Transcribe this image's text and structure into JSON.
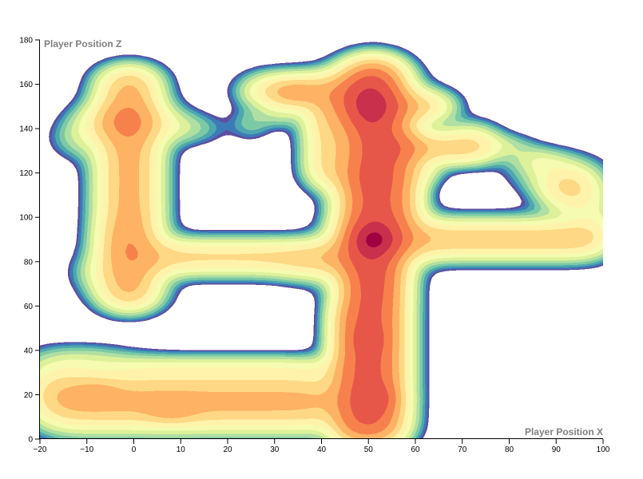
{
  "chart_data": {
    "type": "heatmap",
    "subtype": "density-contour",
    "xlabel": "Player Position X",
    "ylabel": "Player Position Z",
    "xlim": [
      -20,
      100
    ],
    "ylim": [
      0,
      180
    ],
    "xticks": [
      -20,
      -10,
      0,
      10,
      20,
      30,
      40,
      50,
      60,
      70,
      80,
      90,
      100
    ],
    "yticks": [
      0,
      20,
      40,
      60,
      80,
      100,
      120,
      140,
      160,
      180
    ],
    "xtick_labels": [
      "−20",
      "−10",
      "0",
      "10",
      "20",
      "30",
      "40",
      "50",
      "60",
      "70",
      "80",
      "90",
      "100"
    ],
    "ytick_labels": [
      "0",
      "20",
      "40",
      "60",
      "80",
      "100",
      "120",
      "140",
      "160",
      "180"
    ],
    "grid": false,
    "color_scheme": [
      "#5e4fa2",
      "#3288bd",
      "#66c2a5",
      "#abdda4",
      "#e6f598",
      "#ffffbf",
      "#fee08b",
      "#fdae61",
      "#f46d43",
      "#d53e4f",
      "#9e0142"
    ],
    "levels": 14,
    "hotspots": [
      {
        "x": 51,
        "y": 90,
        "weight": 1.0
      },
      {
        "x": 50,
        "y": 150,
        "weight": 0.75
      },
      {
        "x": 52,
        "y": 18,
        "weight": 0.5
      },
      {
        "x": 50,
        "y": 45,
        "weight": 0.45
      },
      {
        "x": 34,
        "y": 156,
        "weight": 0.4
      },
      {
        "x": 8,
        "y": 13,
        "weight": 0.45
      },
      {
        "x": -8,
        "y": 21,
        "weight": 0.4
      },
      {
        "x": -2,
        "y": 143,
        "weight": 0.35
      },
      {
        "x": -2,
        "y": 90,
        "weight": 0.2
      },
      {
        "x": 93,
        "y": 112,
        "weight": 0.35
      }
    ]
  }
}
